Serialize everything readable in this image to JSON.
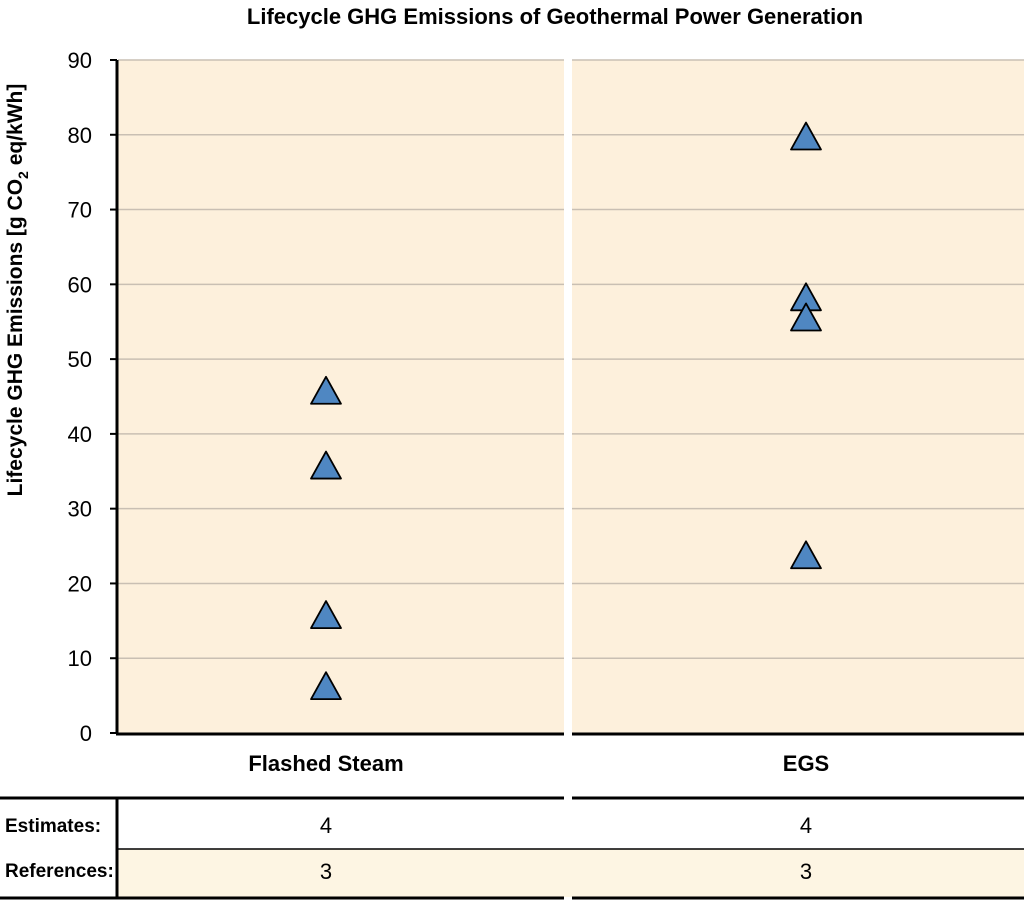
{
  "chart_data": {
    "type": "scatter",
    "title": "Lifecycle GHG Emissions of Geothermal Power Generation",
    "ylabel_parts": [
      "Lifecycle GHG Emissions [g CO",
      "2",
      " eq/kWh]"
    ],
    "ylim": [
      0,
      90
    ],
    "yticks": [
      0,
      10,
      20,
      30,
      40,
      50,
      60,
      70,
      80,
      90
    ],
    "grid": true,
    "marker": "triangle",
    "marker_color": "#4f87c2",
    "panel_color": "#fdf0dc",
    "categories": [
      "Flashed Steam",
      "EGS"
    ],
    "series": [
      {
        "category": "Flashed Steam",
        "values": [
          45.5,
          35.5,
          15.5,
          6
        ]
      },
      {
        "category": "EGS",
        "values": [
          79.5,
          58,
          55.3,
          23.5
        ]
      }
    ],
    "table": {
      "rows": [
        {
          "label": "Estimates:",
          "values": [
            "4",
            "4"
          ]
        },
        {
          "label": "References:",
          "values": [
            "3",
            "3"
          ]
        }
      ]
    }
  }
}
